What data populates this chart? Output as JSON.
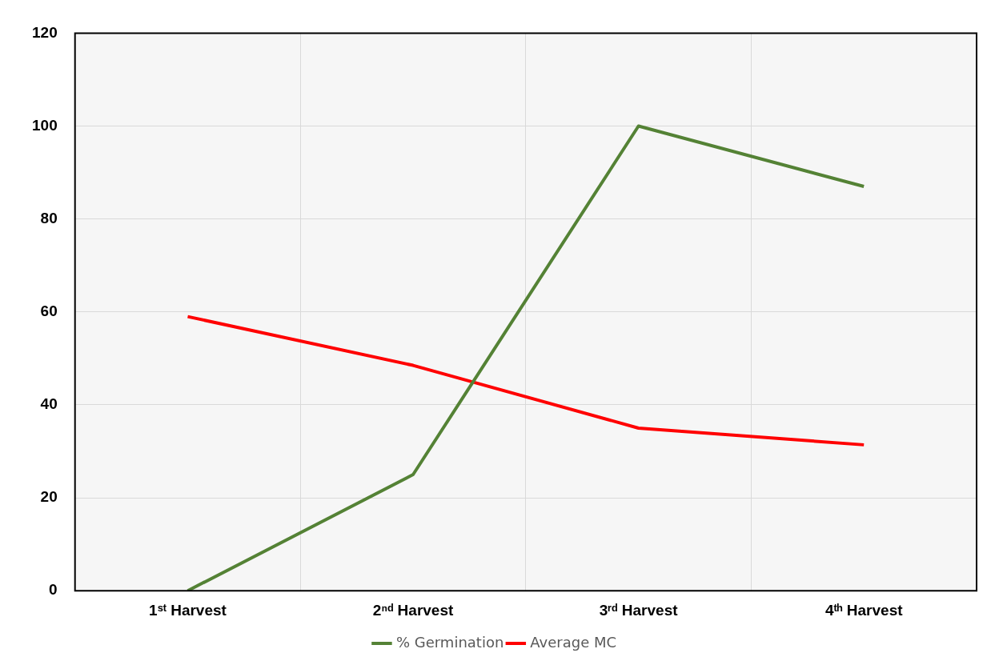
{
  "chart_data": {
    "type": "line",
    "categories": [
      "1ˢᵗ Harvest",
      "2ⁿᵈ Harvest",
      "3ʳᵈ Harvest",
      "4ᵗʰ Harvest"
    ],
    "series": [
      {
        "name": "% Germination",
        "color": "#548235",
        "values": [
          0,
          25,
          100,
          87
        ]
      },
      {
        "name": "Average MC",
        "color": "#ff0000",
        "values": [
          59,
          48.5,
          35,
          31.4
        ]
      }
    ],
    "ylim": [
      0,
      120
    ],
    "yticks": [
      0,
      20,
      40,
      60,
      80,
      100,
      120
    ],
    "grid": true,
    "legend": "bottom",
    "marker": "none",
    "line_style": "solid"
  }
}
